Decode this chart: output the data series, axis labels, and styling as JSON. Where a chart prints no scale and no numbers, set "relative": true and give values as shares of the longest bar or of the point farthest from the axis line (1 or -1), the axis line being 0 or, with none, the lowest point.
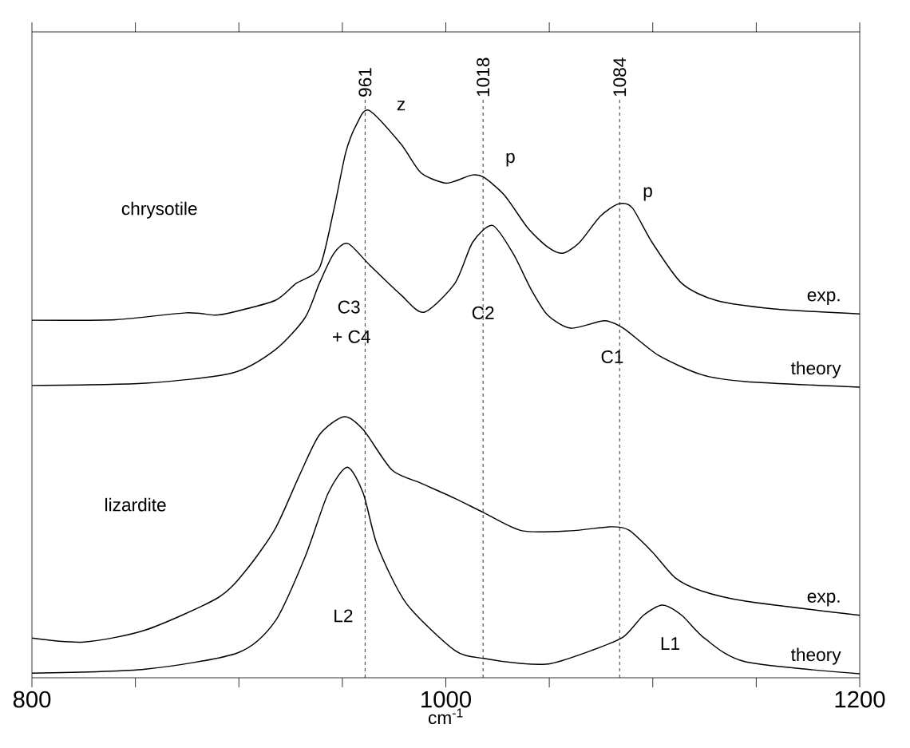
{
  "chart_data": {
    "type": "line",
    "relative": true,
    "xlabel": "cm$^{-1}$",
    "xlim": [
      800,
      1200
    ],
    "xticks": [
      800,
      {
        "value": 850,
        "label": null
      },
      {
        "value": 900,
        "label": null
      },
      {
        "value": 950,
        "label": null
      },
      1000,
      {
        "value": 1050,
        "label": null
      },
      {
        "value": 1100,
        "label": null
      },
      {
        "value": 1150,
        "label": null
      },
      1200
    ],
    "tick_labels": "x",
    "series": [
      {
        "name": "exp.",
        "color": "#000000",
        "x": [
          800,
          840.5,
          874.4,
          888.3,
          896.8,
          917.6,
          927.7,
          938.9,
          945.8,
          951.6,
          957.0,
          962.8,
          978.2,
          987.9,
          999.0,
          1004.4,
          1012.9,
          1018.3,
          1028.4,
          1039.5,
          1049.2,
          1056.5,
          1064.6,
          1074.6,
          1083.5,
          1090.1,
          1099.7,
          1114.0,
          1130.6,
          1158.7,
          1200
        ],
        "values": [
          0.63,
          0.631,
          0.643,
          0.639,
          0.644,
          0.665,
          0.695,
          0.722,
          0.823,
          0.925,
          0.976,
          1.0,
          0.941,
          0.89,
          0.872,
          0.875,
          0.886,
          0.882,
          0.85,
          0.793,
          0.759,
          0.748,
          0.767,
          0.813,
          0.835,
          0.828,
          0.767,
          0.695,
          0.665,
          0.65,
          0.641
        ]
      },
      {
        "name": "theory",
        "color": "#000000",
        "x": [
          800,
          854.8,
          896.8,
          917.6,
          931.9,
          938.9,
          945.8,
          952.7,
          963.5,
          978.2,
          989.4,
          1004.4,
          1012.9,
          1022.6,
          1032.6,
          1041.1,
          1049.2,
          1060.4,
          1076.6,
          1085.8,
          1102.8,
          1123.6,
          1144.8,
          1200
        ],
        "values": [
          0.515,
          0.519,
          0.537,
          0.578,
          0.634,
          0.695,
          0.747,
          0.765,
          0.726,
          0.675,
          0.644,
          0.695,
          0.767,
          0.797,
          0.747,
          0.685,
          0.639,
          0.616,
          0.629,
          0.616,
          0.568,
          0.534,
          0.522,
          0.512
        ]
      },
      {
        "name": "exp.",
        "color": "#000000",
        "x": [
          800,
          825.1,
          854.8,
          889.9,
          903.8,
          917.6,
          929.2,
          938.9,
          950.8,
          960.1,
          974.0,
          987.9,
          1004.4,
          1018.3,
          1036.8,
          1060.4,
          1080.0,
          1088.5,
          1099.7,
          1110.9,
          1123.6,
          1144.8,
          1200
        ],
        "values": [
          0.07,
          0.063,
          0.084,
          0.141,
          0.191,
          0.263,
          0.356,
          0.428,
          0.46,
          0.437,
          0.366,
          0.343,
          0.316,
          0.291,
          0.259,
          0.259,
          0.266,
          0.26,
          0.222,
          0.176,
          0.153,
          0.135,
          0.11
        ]
      },
      {
        "name": "theory",
        "color": "#000000",
        "x": [
          800,
          854.8,
          899.5,
          917.6,
          931.9,
          943.1,
          952.4,
          960.1,
          967.0,
          980.9,
          1004.4,
          1018.3,
          1036.8,
          1050.7,
          1070.4,
          1085.8,
          1095.5,
          1104.7,
          1114.0,
          1125.2,
          1144.8,
          1200
        ],
        "values": [
          0.008,
          0.015,
          0.044,
          0.1,
          0.212,
          0.325,
          0.371,
          0.325,
          0.232,
          0.131,
          0.048,
          0.034,
          0.025,
          0.025,
          0.048,
          0.072,
          0.11,
          0.128,
          0.11,
          0.069,
          0.028,
          0.007
        ]
      }
    ],
    "ref_lines": [
      {
        "axis": "x",
        "value": 961,
        "label": "961",
        "color": "#000000",
        "line_style": "dashed"
      },
      {
        "axis": "x",
        "value": 1018,
        "label": "1018",
        "color": "#000000",
        "line_style": "dashed"
      },
      {
        "axis": "x",
        "value": 1084,
        "label": "1084",
        "color": "#000000",
        "line_style": "dashed"
      }
    ],
    "annotations": [
      "chrysotile",
      "lizardite",
      "z",
      "p",
      "p",
      "C3",
      "+ C4",
      "C2",
      "C1",
      "L2",
      "L1"
    ]
  }
}
